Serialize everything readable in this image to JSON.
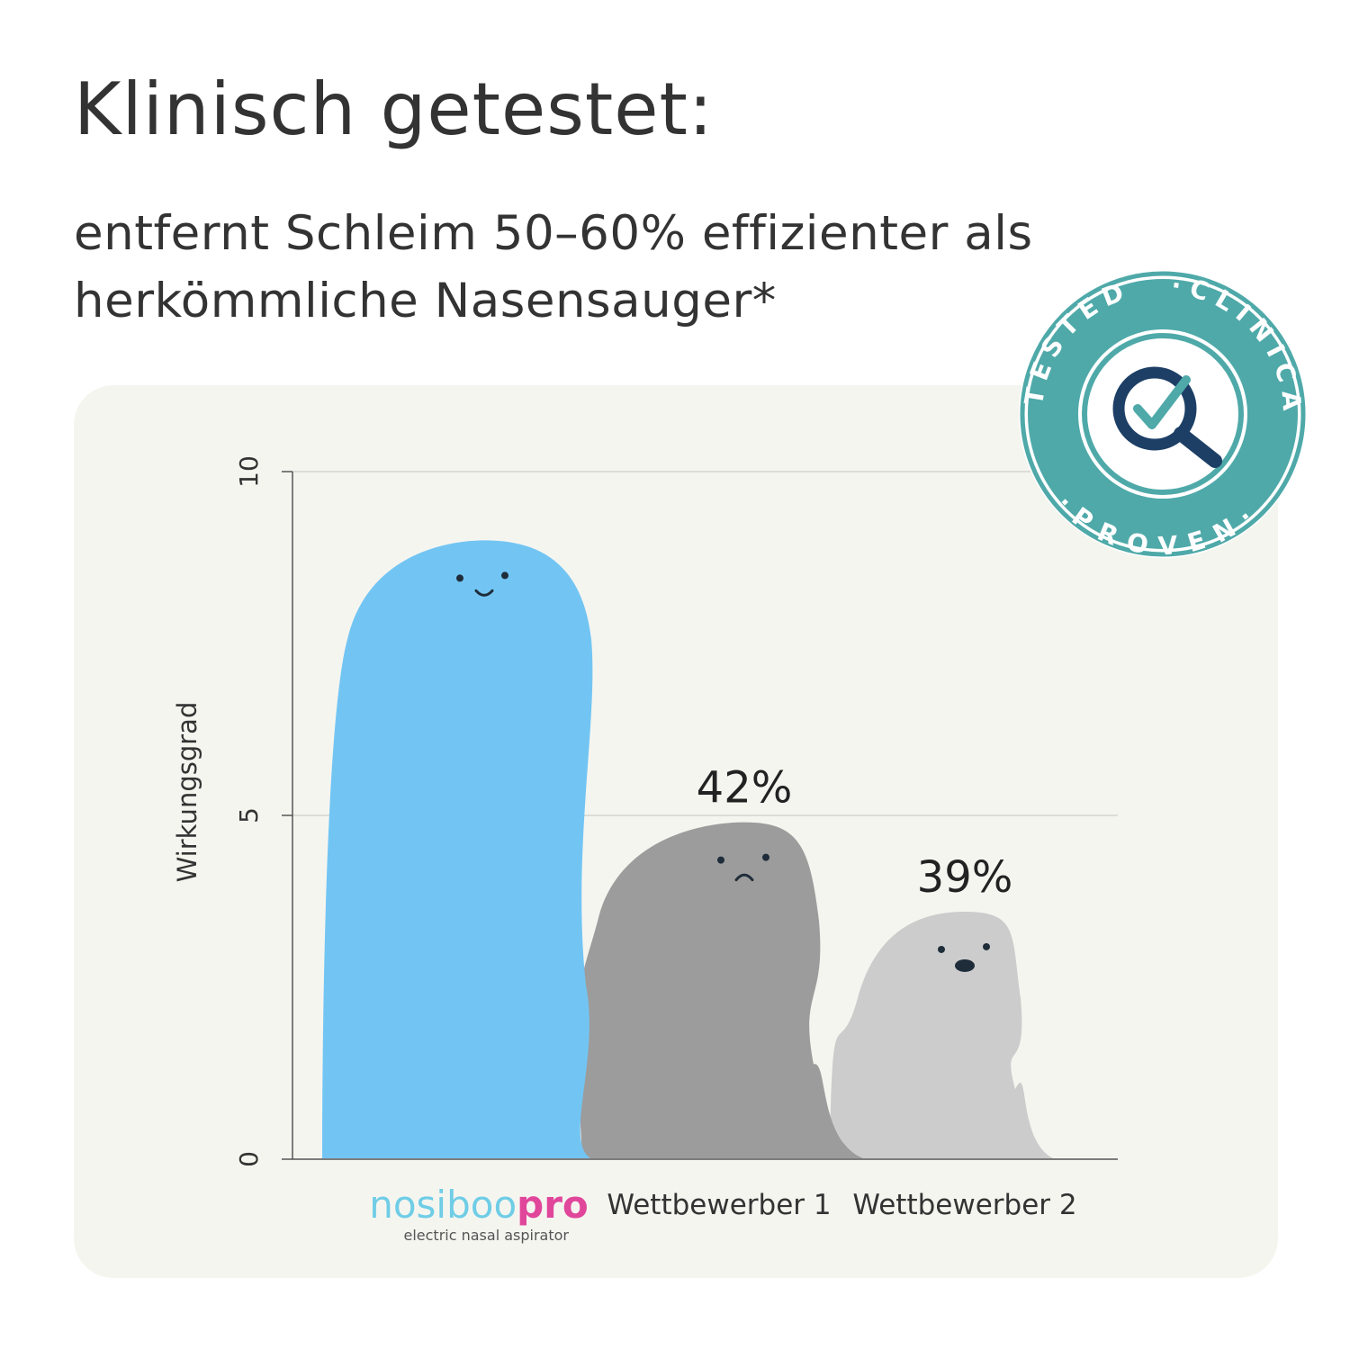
{
  "headline": "Klinisch getestet:",
  "subline": "entfernt Schleim 50–60% effizienter als herkömmliche Nasensauger*",
  "badge": {
    "top_text": "·CLINICALLY",
    "left_text": "TESTED",
    "bottom_text": "·PROVEN·",
    "icon": "magnifier-check-icon",
    "color": "#4fa9a9",
    "icon_color": "#1d3f66"
  },
  "chart_data": {
    "type": "bar",
    "ylabel": "Wirkungsgrad",
    "ylim": [
      0,
      10
    ],
    "yticks": [
      "0",
      "5",
      "10"
    ],
    "grid": true,
    "categories": [
      "nosiboopro",
      "Wettbewerber 1",
      "Wettbewerber 2"
    ],
    "values": [
      9.0,
      4.9,
      3.6
    ],
    "data_labels": [
      "",
      "42%",
      "39%"
    ],
    "colors": [
      "#72c5f3",
      "#9c9c9c",
      "#cccccc"
    ],
    "faces": [
      "happy",
      "sad",
      "surprised"
    ]
  },
  "brand": {
    "name_light": "nosiboo",
    "name_bold": "pro",
    "tagline": "electric nasal aspirator",
    "color_light": "#6fcde6",
    "color_bold": "#e0479b"
  }
}
